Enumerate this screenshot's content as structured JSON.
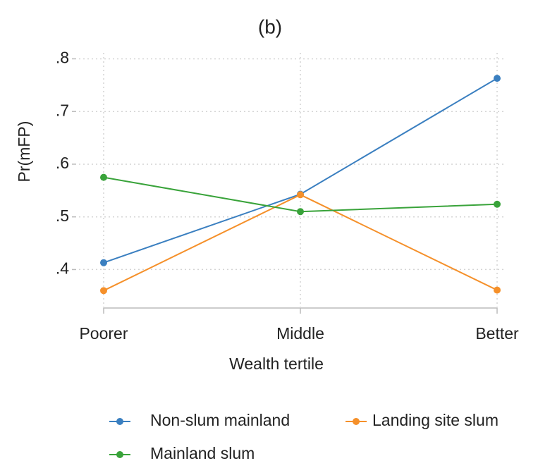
{
  "chart_data": {
    "type": "line",
    "title": "(b)",
    "x_label": "Wealth tertile",
    "y_label": "Pr(mFP)",
    "categories": [
      "Poorer",
      "Middle",
      "Better"
    ],
    "series": [
      {
        "name": "Non-slum mainland",
        "color": "#3a7fc0",
        "values": [
          0.413,
          0.543,
          0.763
        ]
      },
      {
        "name": "Landing site slum",
        "color": "#f5902a",
        "values": [
          0.36,
          0.542,
          0.361
        ]
      },
      {
        "name": "Mainland slum",
        "color": "#39a33a",
        "values": [
          0.575,
          0.51,
          0.524
        ]
      }
    ],
    "ylim": [
      0.327,
      0.818
    ],
    "yticks": [
      {
        "value": 0.4,
        "label": ".4"
      },
      {
        "value": 0.5,
        "label": ".5"
      },
      {
        "value": 0.6,
        "label": ".6"
      },
      {
        "value": 0.7,
        "label": ".7"
      },
      {
        "value": 0.8,
        "label": ".8"
      }
    ],
    "grid": true
  }
}
